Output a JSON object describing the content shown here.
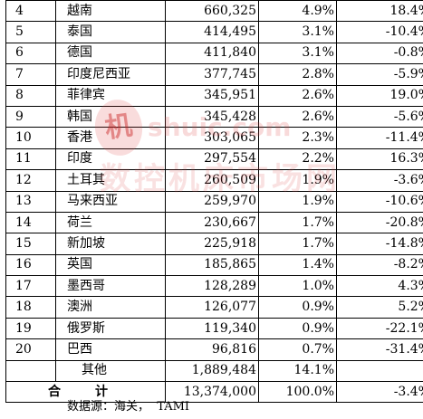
{
  "table": {
    "rows": [
      {
        "rank": "4",
        "name": "越南",
        "value": "660,325",
        "share": "4.9%",
        "growth": "18.4%"
      },
      {
        "rank": "5",
        "name": "泰国",
        "value": "414,495",
        "share": "3.1%",
        "growth": "-10.4%"
      },
      {
        "rank": "6",
        "name": "德国",
        "value": "411,840",
        "share": "3.1%",
        "growth": "-0.8%"
      },
      {
        "rank": "7",
        "name": "印度尼西亚",
        "value": "377,745",
        "share": "2.8%",
        "growth": "-5.9%"
      },
      {
        "rank": "8",
        "name": "菲律宾",
        "value": "345,951",
        "share": "2.6%",
        "growth": "19.0%"
      },
      {
        "rank": "9",
        "name": "韩国",
        "value": "345,428",
        "share": "2.6%",
        "growth": "-5.6%"
      },
      {
        "rank": "10",
        "name": "香港",
        "value": "303,065",
        "share": "2.3%",
        "growth": "-11.4%"
      },
      {
        "rank": "11",
        "name": "印度",
        "value": "297,554",
        "share": "2.2%",
        "growth": "16.3%"
      },
      {
        "rank": "12",
        "name": "土耳其",
        "value": "260,509",
        "share": "1.9%",
        "growth": "-3.6%"
      },
      {
        "rank": "13",
        "name": "马来西亚",
        "value": "259,970",
        "share": "1.9%",
        "growth": "-10.6%"
      },
      {
        "rank": "14",
        "name": "荷兰",
        "value": "230,667",
        "share": "1.7%",
        "growth": "-20.8%"
      },
      {
        "rank": "15",
        "name": "新加坡",
        "value": "225,918",
        "share": "1.7%",
        "growth": "-14.8%"
      },
      {
        "rank": "16",
        "name": "英国",
        "value": "185,865",
        "share": "1.4%",
        "growth": "-8.2%"
      },
      {
        "rank": "17",
        "name": "墨西哥",
        "value": "128,289",
        "share": "1.0%",
        "growth": "4.3%"
      },
      {
        "rank": "18",
        "name": "澳洲",
        "value": "126,077",
        "share": "0.9%",
        "growth": "5.2%"
      },
      {
        "rank": "19",
        "name": "俄罗斯",
        "value": "119,340",
        "share": "0.9%",
        "growth": "-22.1%"
      },
      {
        "rank": "20",
        "name": "巴西",
        "value": "96,816",
        "share": "0.7%",
        "growth": "-31.4%"
      }
    ],
    "other": {
      "rank": "",
      "name": "其他",
      "value": "1,889,484",
      "share": "14.1%",
      "growth": ""
    },
    "total": {
      "label_left": "合",
      "label_right": "计",
      "value": "13,374,000",
      "share": "100.0%",
      "growth": "-3.4%"
    }
  },
  "footnote": "数据源：海关，  TAMI",
  "watermark": {
    "logo_char": "机",
    "url": "shuic.com",
    "cn_text": "数控机床市场网",
    "color": "#dc4646"
  }
}
